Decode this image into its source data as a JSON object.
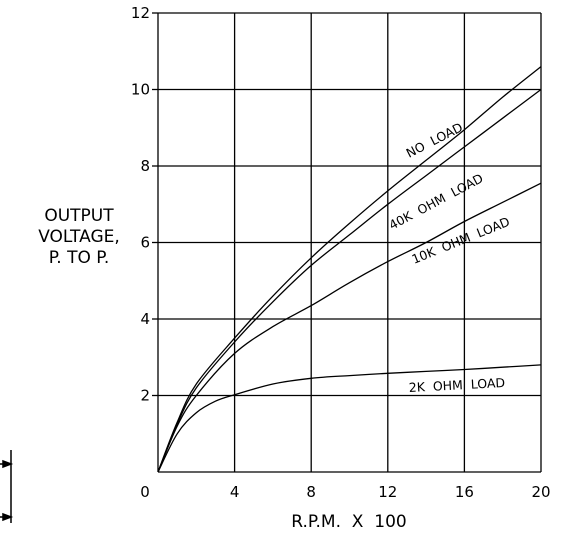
{
  "chart_data": {
    "type": "line",
    "xlabel": "R.P.M.  X  100",
    "ylabel_lines": [
      "OUTPUT",
      "VOLTAGE,",
      "P.  TO  P."
    ],
    "xlim": [
      0,
      20
    ],
    "ylim": [
      0,
      12
    ],
    "x_ticks": [
      0,
      4,
      8,
      12,
      16,
      20
    ],
    "y_ticks": [
      0,
      2,
      4,
      6,
      8,
      10,
      12
    ],
    "grid": true,
    "series": [
      {
        "name": "NO  LOAD",
        "x": [
          0,
          1,
          2,
          4,
          6,
          8,
          10,
          12,
          14,
          16,
          18,
          20
        ],
        "y": [
          0,
          1.3,
          2.3,
          3.5,
          4.6,
          5.6,
          6.5,
          7.35,
          8.15,
          8.95,
          9.8,
          10.6
        ]
      },
      {
        "name": "40K  OHM  LOAD",
        "x": [
          0,
          1,
          2,
          4,
          6,
          8,
          10,
          12,
          14,
          16,
          18,
          20
        ],
        "y": [
          0,
          1.25,
          2.2,
          3.4,
          4.45,
          5.4,
          6.2,
          7.0,
          7.75,
          8.5,
          9.25,
          10.0
        ]
      },
      {
        "name": "10K  OHM  LOAD",
        "x": [
          0,
          1,
          2,
          4,
          6,
          8,
          10,
          12,
          14,
          16,
          18,
          20
        ],
        "y": [
          0,
          1.2,
          2.0,
          3.1,
          3.8,
          4.35,
          4.95,
          5.5,
          6.0,
          6.55,
          7.05,
          7.55
        ]
      },
      {
        "name": "2K  OHM  LOAD",
        "x": [
          0,
          1,
          2,
          3,
          4,
          6,
          8,
          10,
          12,
          14,
          16,
          18,
          20
        ],
        "y": [
          0,
          1.0,
          1.55,
          1.85,
          2.02,
          2.3,
          2.45,
          2.52,
          2.58,
          2.63,
          2.68,
          2.74,
          2.8
        ]
      }
    ]
  }
}
